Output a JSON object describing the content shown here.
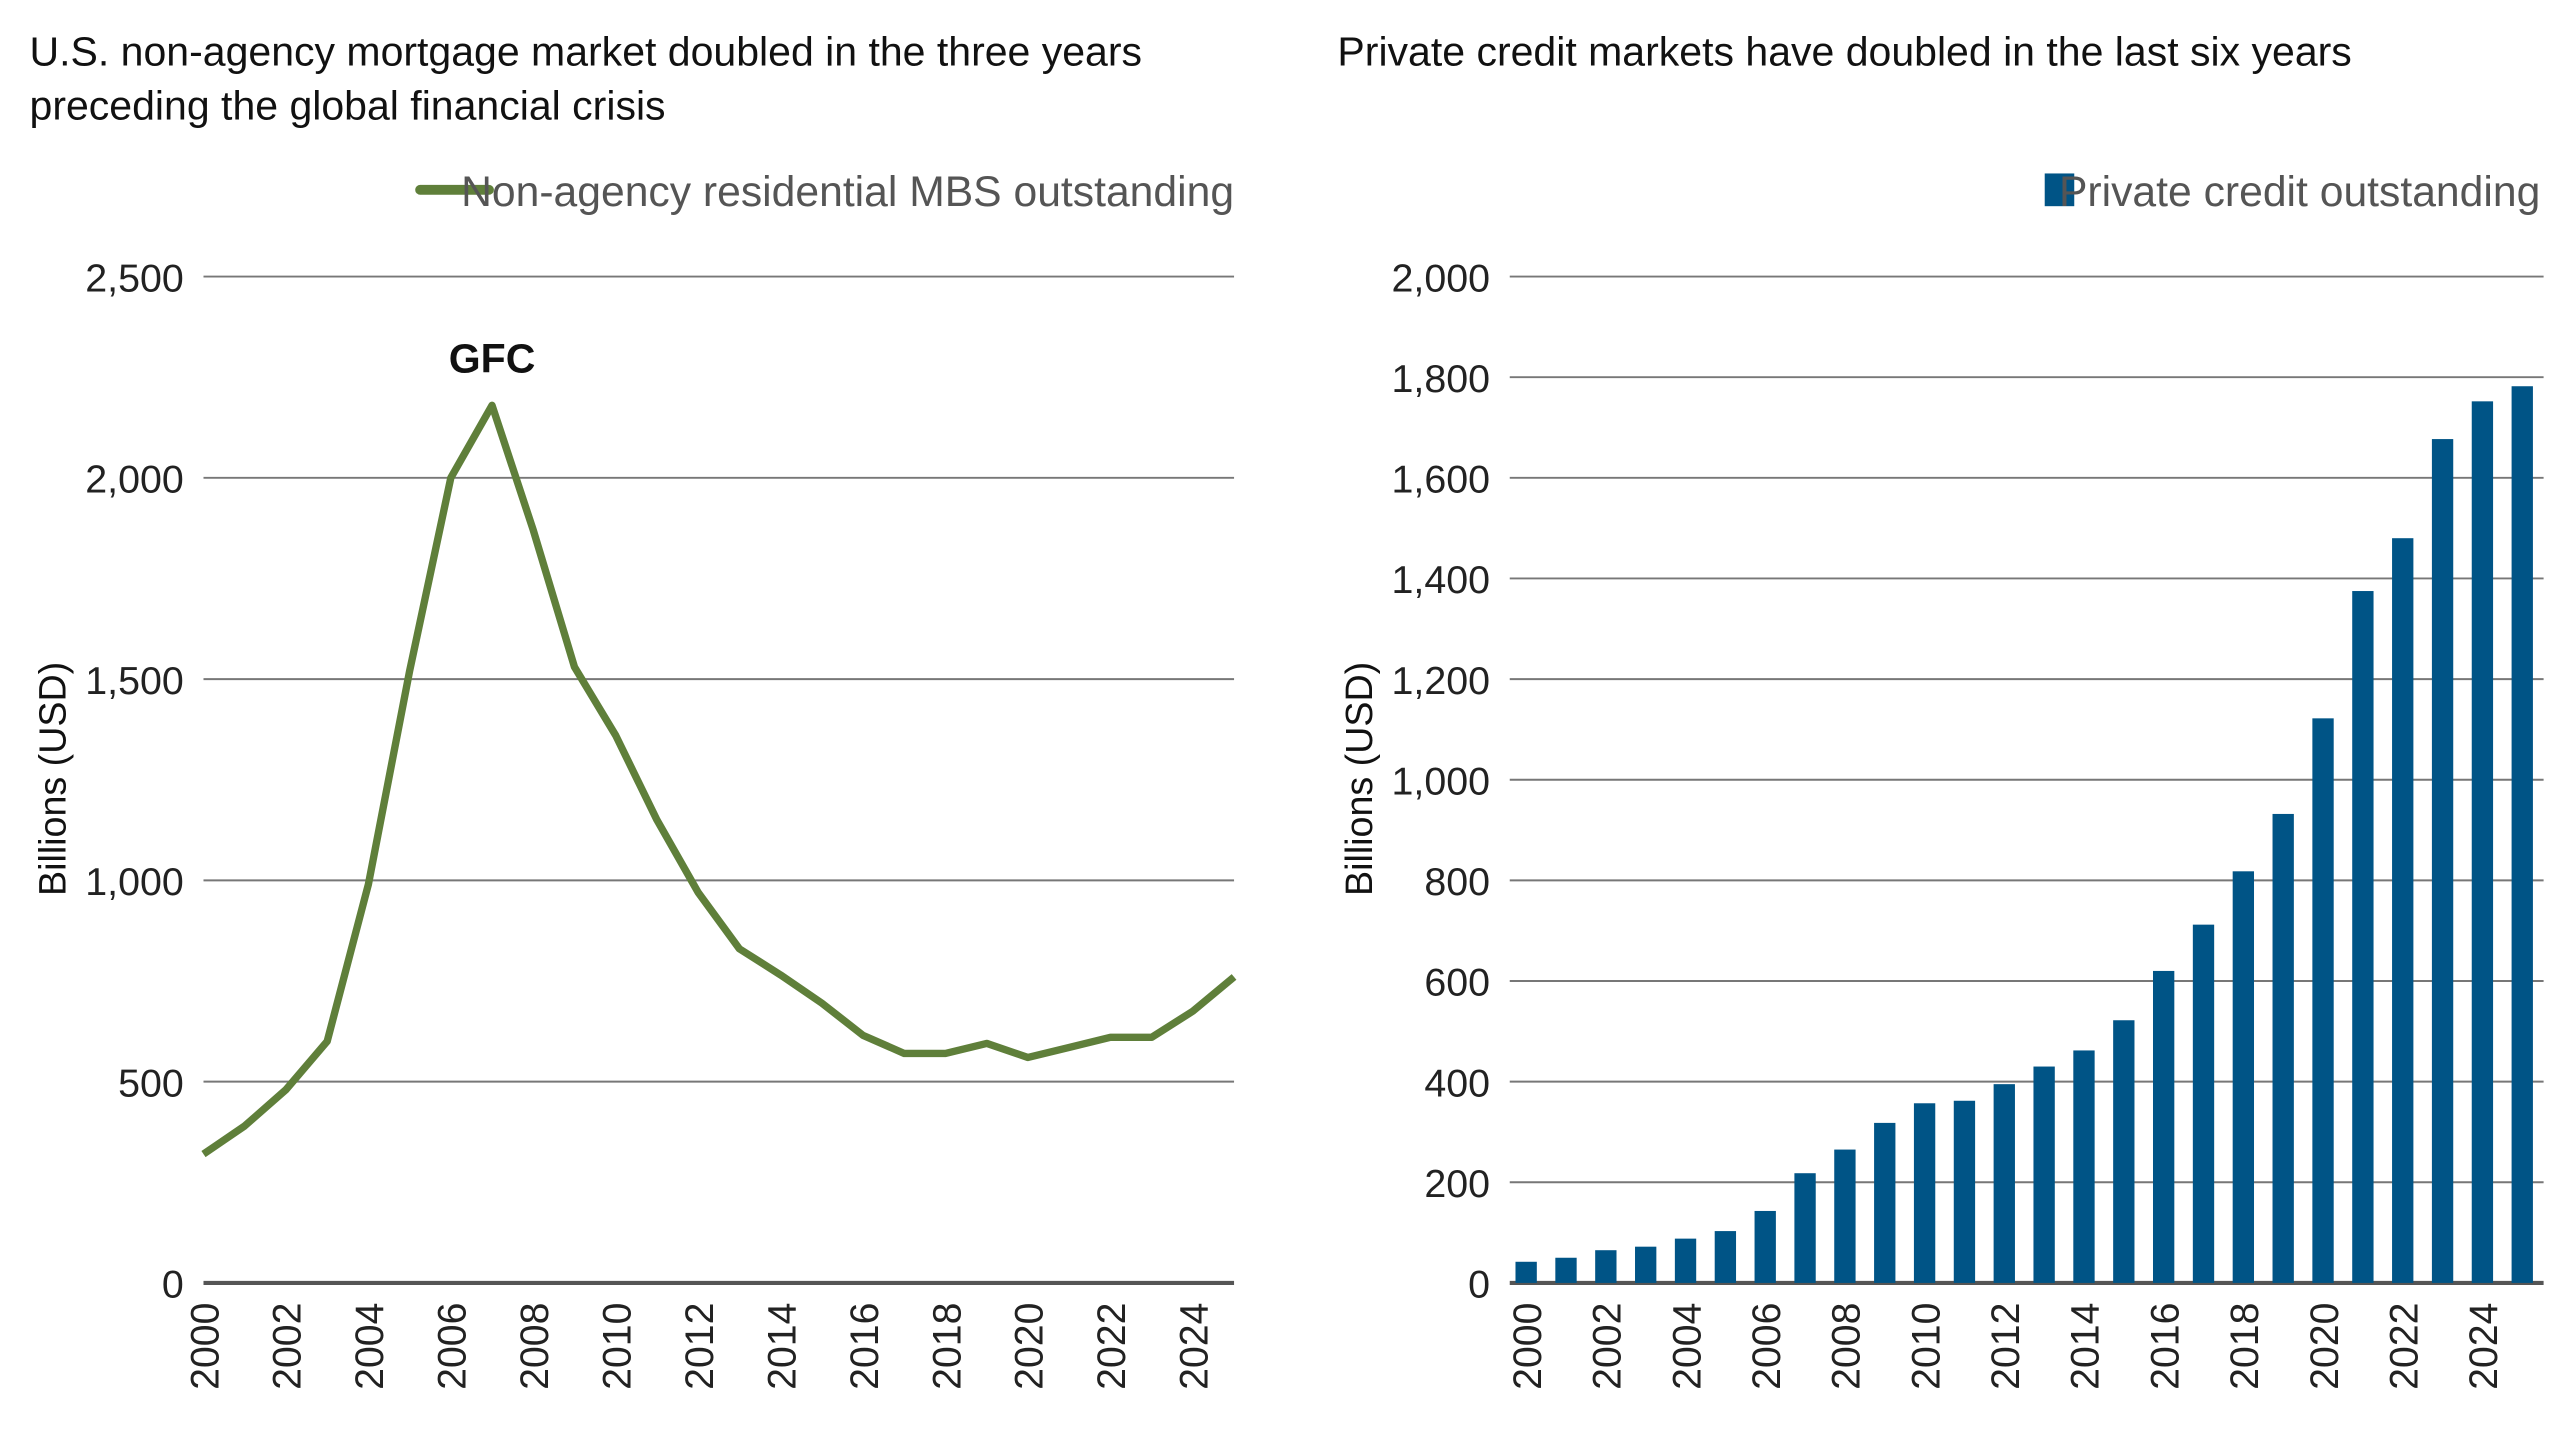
{
  "chart_data": [
    {
      "type": "line",
      "title": "U.S. non-agency mortgage market doubled in the three years preceding the global financial crisis",
      "title_lines": [
        "U.S. non-agency mortgage market doubled in the three years",
        "preceding the global financial crisis"
      ],
      "ylabel": "Billions (USD)",
      "ylim": [
        0,
        2500
      ],
      "yticks": [
        "0",
        "500",
        "1,000",
        "1,500",
        "2,000",
        "2,500"
      ],
      "xticks": [
        "2000",
        "2002",
        "2004",
        "2006",
        "2008",
        "2010",
        "2012",
        "2014",
        "2016",
        "2018",
        "2020",
        "2022",
        "2024"
      ],
      "grid": true,
      "legend_position": "top-right",
      "annotation": {
        "text": "GFC",
        "x": 2007
      },
      "color": "#5f7f3a",
      "series": [
        {
          "name": "Non-agency residential MBS outstanding",
          "x": [
            2000,
            2001,
            2002,
            2003,
            2004,
            2005,
            2006,
            2007,
            2008,
            2009,
            2010,
            2011,
            2012,
            2013,
            2014,
            2015,
            2016,
            2017,
            2018,
            2019,
            2020,
            2021,
            2022,
            2023,
            2024,
            2025
          ],
          "values": [
            320,
            390,
            480,
            600,
            990,
            1520,
            2000,
            2180,
            1870,
            1530,
            1360,
            1150,
            970,
            830,
            765,
            695,
            615,
            570,
            570,
            595,
            560,
            585,
            610,
            610,
            675,
            760
          ]
        }
      ]
    },
    {
      "type": "bar",
      "title": "Private credit markets have doubled in the last six years",
      "title_lines": [
        "Private credit markets have doubled in the last six years"
      ],
      "ylabel": "Billions (USD)",
      "ylim": [
        0,
        2000
      ],
      "yticks": [
        "0",
        "200",
        "400",
        "600",
        "800",
        "1,000",
        "1,200",
        "1,400",
        "1,600",
        "1,800",
        "2,000"
      ],
      "xticks": [
        "2000",
        "2002",
        "2004",
        "2006",
        "2008",
        "2010",
        "2012",
        "2014",
        "2016",
        "2018",
        "2020",
        "2022",
        "2024"
      ],
      "grid": true,
      "legend_position": "top-right",
      "color": "#005486",
      "series": [
        {
          "name": "Private credit outstanding",
          "x": [
            2000,
            2001,
            2002,
            2003,
            2004,
            2005,
            2006,
            2007,
            2008,
            2009,
            2010,
            2011,
            2012,
            2013,
            2014,
            2015,
            2016,
            2017,
            2018,
            2019,
            2020,
            2021,
            2022,
            2023,
            2024,
            2025
          ],
          "values": [
            42,
            50,
            65,
            72,
            88,
            103,
            143,
            218,
            265,
            318,
            357,
            362,
            395,
            430,
            462,
            522,
            620,
            712,
            818,
            932,
            1122,
            1375,
            1480,
            1677,
            1752,
            1782
          ]
        }
      ]
    }
  ]
}
